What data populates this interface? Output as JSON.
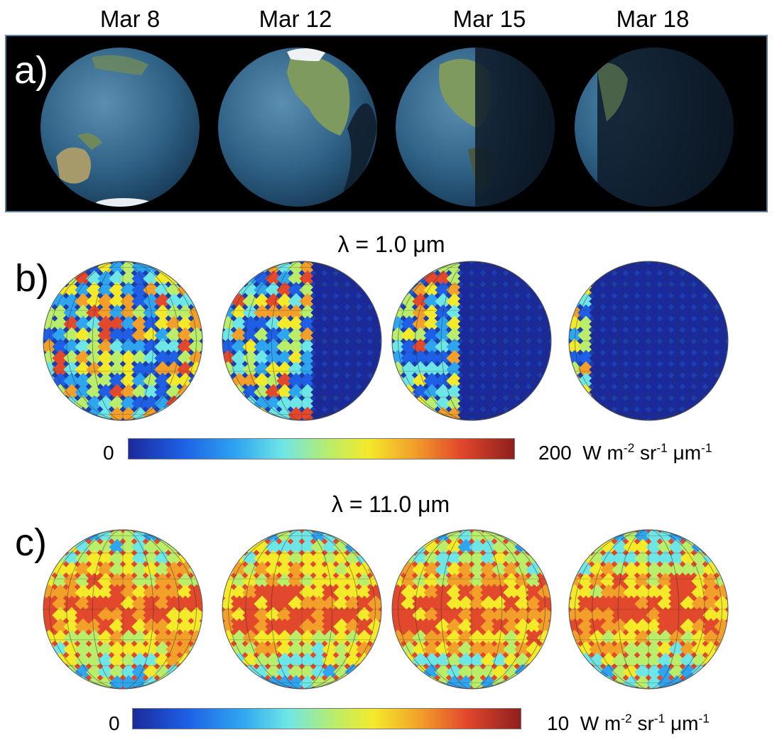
{
  "dates": [
    "Mar 8",
    "Mar 12",
    "Mar 15",
    "Mar 18"
  ],
  "panels": {
    "a": {
      "letter": "a)"
    },
    "b": {
      "letter": "b)",
      "heading": "λ = 1.0 μm",
      "colorbar": {
        "min": "0",
        "max": "200",
        "unit_main": "W m",
        "exp1": "-2",
        "unit_mid": " sr",
        "exp2": "-1",
        "unit_mu": " μm",
        "exp3": "-1"
      }
    },
    "c": {
      "letter": "c)",
      "heading": "λ = 11.0 μm",
      "colorbar": {
        "min": "0",
        "max": "10",
        "unit_main": "W m",
        "exp1": "-2",
        "unit_mid": " sr",
        "exp2": "-1",
        "unit_mu": " μm",
        "exp3": "-1"
      }
    }
  },
  "colors": {
    "frame_border": "#5a7fa0",
    "night_blue": "#1c3fb0"
  }
}
